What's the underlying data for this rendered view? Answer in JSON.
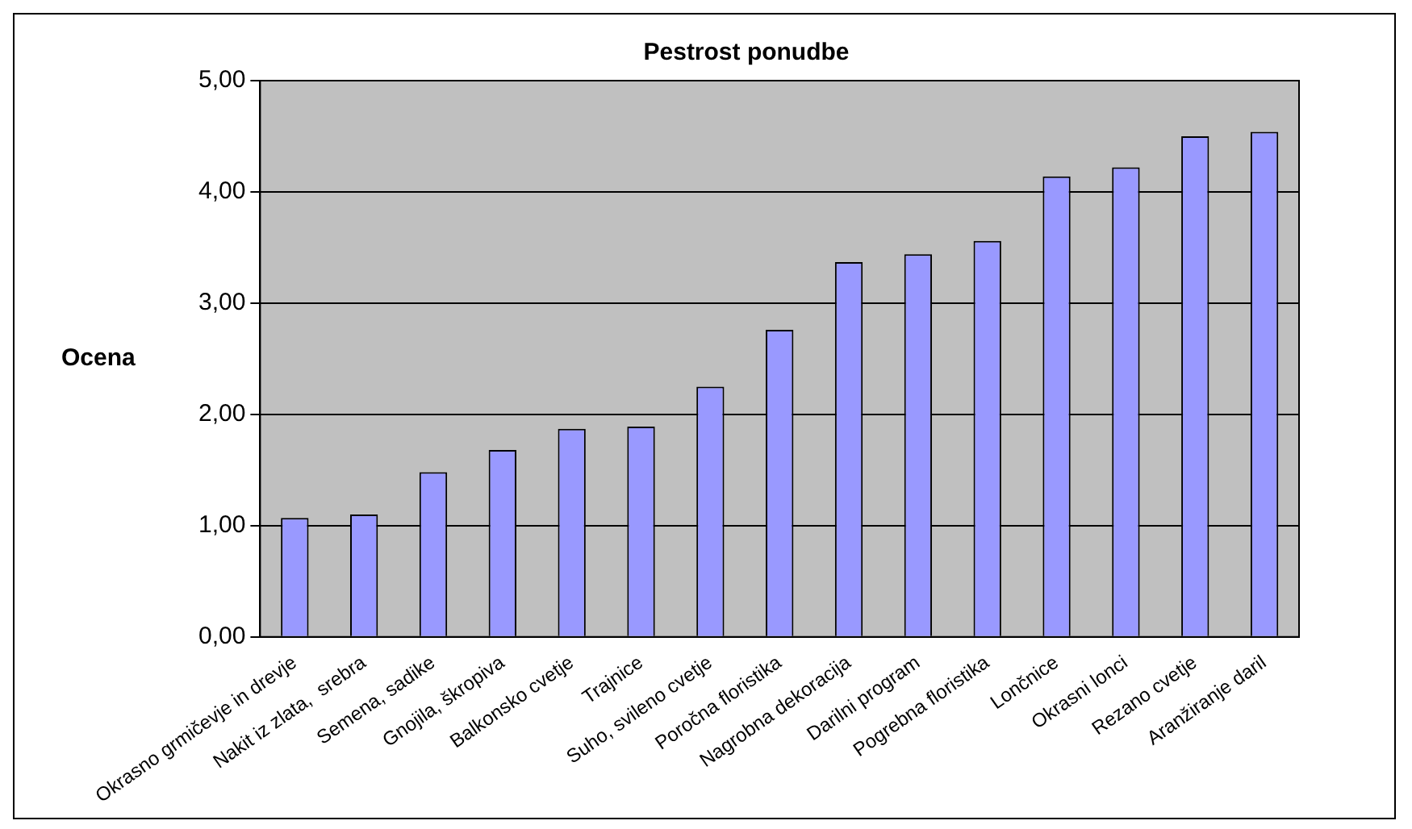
{
  "chart_data": {
    "type": "bar",
    "title": "Pestrost ponudbe",
    "ylabel": "Ocena",
    "categories": [
      "Okrasno grmičevje in drevje",
      "Nakit iz zlata,  srebra",
      "Semena, sadike",
      "Gnojila, škropiva",
      "Balkonsko cvetje",
      "Trajnice",
      "Suho, svileno cvetje",
      "Poročna floristika",
      "Nagrobna dekoracija",
      "Darilni program",
      "Pogrebna floristika",
      "Lončnice",
      "Okrasni lonci",
      "Rezano cvetje",
      "Aranžiranje daril"
    ],
    "values": [
      1.07,
      1.1,
      1.48,
      1.68,
      1.87,
      1.89,
      2.25,
      2.76,
      3.37,
      3.44,
      3.56,
      4.14,
      4.22,
      4.5,
      4.54
    ],
    "color": "#9999ff",
    "ylim": [
      0,
      5
    ],
    "yticks": [
      {
        "value": 0,
        "label": "0,00"
      },
      {
        "value": 1,
        "label": "1,00"
      },
      {
        "value": 2,
        "label": "2,00"
      },
      {
        "value": 3,
        "label": "3,00"
      },
      {
        "value": 4,
        "label": "4,00"
      },
      {
        "value": 5,
        "label": "5,00"
      }
    ],
    "grid": "y",
    "legend": false
  }
}
